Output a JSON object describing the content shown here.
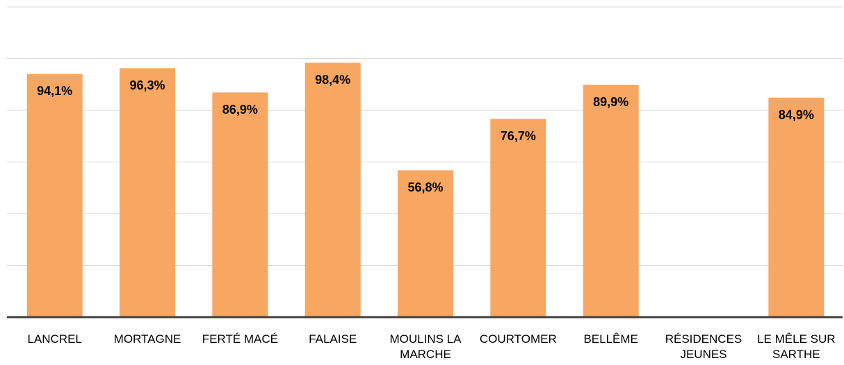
{
  "chart_data": {
    "type": "bar",
    "categories": [
      "LANCREL",
      "MORTAGNE",
      "FERTÉ MACÉ",
      "FALAISE",
      "MOULINS LA MARCHE",
      "COURTOMER",
      "BELLÊME",
      "RÉSIDENCES JEUNES",
      "LE MÊLE SUR SARTHE"
    ],
    "values": [
      94.1,
      96.3,
      86.9,
      98.4,
      56.8,
      76.7,
      89.9,
      null,
      84.9
    ],
    "value_labels": [
      "94,1%",
      "96,3%",
      "86,9%",
      "98,4%",
      "56,8%",
      "76,7%",
      "89,9%",
      null,
      "84,9%"
    ],
    "color": "#f8a762",
    "ylim": [
      0,
      120
    ],
    "yticks": [
      0,
      20,
      40,
      60,
      80,
      100,
      120
    ],
    "grid": true
  }
}
